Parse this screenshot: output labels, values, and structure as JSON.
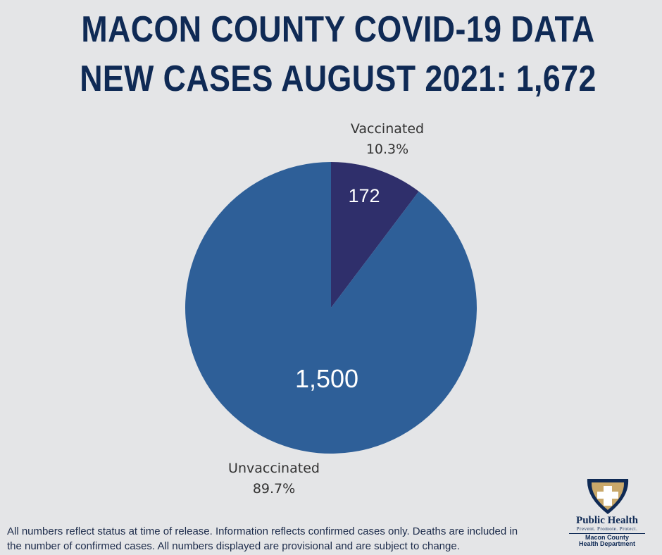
{
  "header": {
    "title_line1": "MACON COUNTY COVID-19 DATA",
    "title_line2": "NEW CASES AUGUST 2021: 1,672"
  },
  "chart_data": {
    "type": "pie",
    "title": "NEW CASES AUGUST 2021: 1,672",
    "slices": [
      {
        "label": "Vaccinated",
        "value": 172,
        "value_label": "172",
        "percent_label": "10.3%",
        "color": "#2f2f6b"
      },
      {
        "label": "Unvaccinated",
        "value": 1500,
        "value_label": "1,500",
        "percent_label": "89.7%",
        "color": "#2e5f98"
      }
    ],
    "start_angle": "12 o'clock",
    "direction": "clockwise"
  },
  "footer": {
    "note_line1": "All numbers reflect status at time of release. Information reflects confirmed cases only. Deaths are included in",
    "note_line2": "the number of confirmed cases. All numbers displayed are provisional and are subject to change."
  },
  "logo": {
    "name": "Public Health",
    "tagline": "Prevent. Promote. Protect.",
    "org_line1": "Macon County",
    "org_line2": "Health Department",
    "icon": "shield-cross-icon"
  },
  "colors": {
    "background": "#e4e5e7",
    "title": "#0f2a55",
    "vaccinated": "#2f2f6b",
    "unvaccinated": "#2e5f98",
    "logo_gold": "#c9a86a"
  }
}
